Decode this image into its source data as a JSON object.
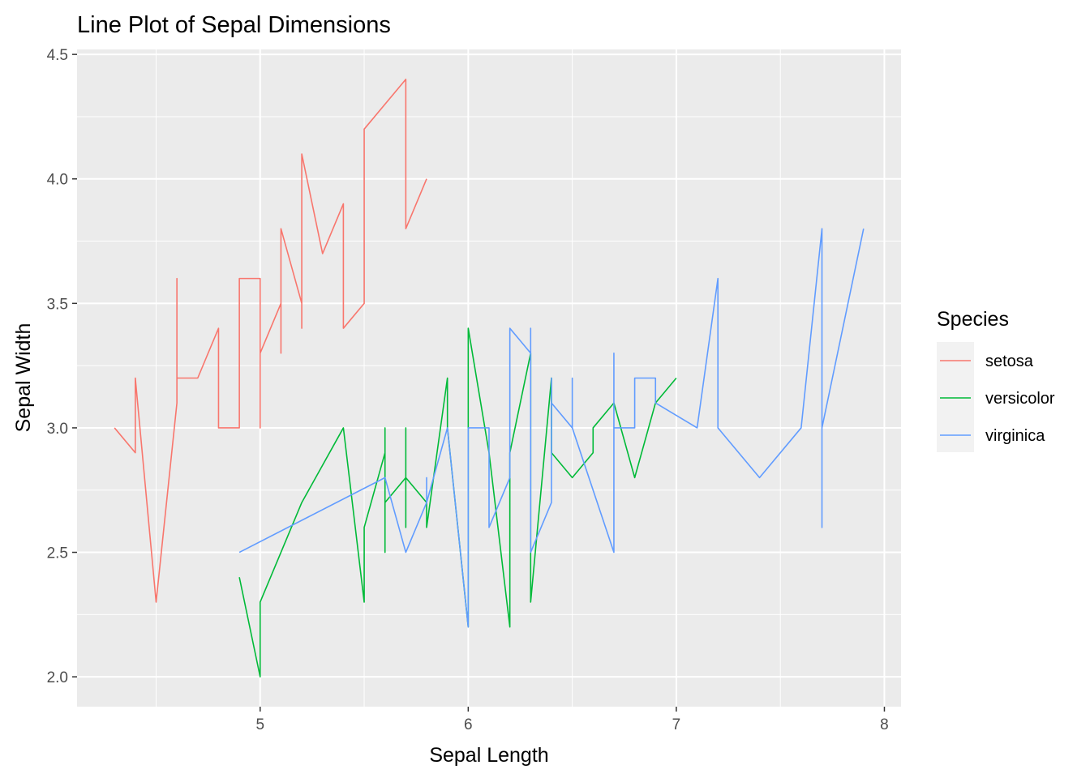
{
  "chart_data": {
    "type": "line",
    "title": "Line Plot of Sepal Dimensions",
    "xlabel": "Sepal Length",
    "ylabel": "Sepal Width",
    "xlim": [
      4.3,
      7.9
    ],
    "ylim": [
      2.0,
      4.4
    ],
    "x_ticks": [
      5,
      6,
      7,
      8
    ],
    "x_tick_labels": [
      "5",
      "6",
      "7",
      "8"
    ],
    "y_ticks": [
      2.0,
      2.5,
      3.0,
      3.5,
      4.0,
      4.5
    ],
    "y_tick_labels": [
      "2.0",
      "2.5",
      "3.0",
      "3.5",
      "4.0",
      "4.5"
    ],
    "grid": true,
    "legend": {
      "title": "Species",
      "position": "right"
    },
    "series": [
      {
        "name": "setosa",
        "color": "#F8766D",
        "points": [
          [
            4.3,
            3.0
          ],
          [
            4.4,
            2.9
          ],
          [
            4.4,
            3.2
          ],
          [
            4.5,
            2.3
          ],
          [
            4.6,
            3.1
          ],
          [
            4.6,
            3.6
          ],
          [
            4.6,
            3.2
          ],
          [
            4.7,
            3.2
          ],
          [
            4.8,
            3.4
          ],
          [
            4.8,
            3.0
          ],
          [
            4.9,
            3.0
          ],
          [
            4.9,
            3.6
          ],
          [
            5.0,
            3.6
          ],
          [
            5.0,
            3.0
          ],
          [
            5.0,
            3.3
          ],
          [
            5.1,
            3.5
          ],
          [
            5.1,
            3.3
          ],
          [
            5.1,
            3.8
          ],
          [
            5.2,
            3.5
          ],
          [
            5.2,
            3.4
          ],
          [
            5.2,
            4.1
          ],
          [
            5.3,
            3.7
          ],
          [
            5.4,
            3.9
          ],
          [
            5.4,
            3.4
          ],
          [
            5.5,
            3.5
          ],
          [
            5.5,
            4.2
          ],
          [
            5.7,
            4.4
          ],
          [
            5.7,
            3.8
          ],
          [
            5.8,
            4.0
          ]
        ]
      },
      {
        "name": "versicolor",
        "color": "#00BA38",
        "points": [
          [
            4.9,
            2.4
          ],
          [
            5.0,
            2.0
          ],
          [
            5.0,
            2.3
          ],
          [
            5.2,
            2.7
          ],
          [
            5.4,
            3.0
          ],
          [
            5.5,
            2.3
          ],
          [
            5.5,
            2.6
          ],
          [
            5.6,
            2.9
          ],
          [
            5.6,
            2.5
          ],
          [
            5.6,
            3.0
          ],
          [
            5.6,
            2.7
          ],
          [
            5.7,
            2.8
          ],
          [
            5.7,
            2.6
          ],
          [
            5.7,
            3.0
          ],
          [
            5.7,
            2.8
          ],
          [
            5.8,
            2.7
          ],
          [
            5.8,
            2.6
          ],
          [
            5.9,
            3.2
          ],
          [
            5.9,
            3.0
          ],
          [
            6.0,
            2.2
          ],
          [
            6.0,
            3.4
          ],
          [
            6.1,
            2.9
          ],
          [
            6.2,
            2.2
          ],
          [
            6.2,
            2.9
          ],
          [
            6.3,
            3.3
          ],
          [
            6.3,
            2.3
          ],
          [
            6.4,
            3.2
          ],
          [
            6.4,
            2.9
          ],
          [
            6.5,
            2.8
          ],
          [
            6.6,
            2.9
          ],
          [
            6.6,
            3.0
          ],
          [
            6.7,
            3.1
          ],
          [
            6.8,
            2.8
          ],
          [
            6.9,
            3.1
          ],
          [
            7.0,
            3.2
          ]
        ]
      },
      {
        "name": "virginica",
        "color": "#619CFF",
        "points": [
          [
            4.9,
            2.5
          ],
          [
            5.6,
            2.8
          ],
          [
            5.7,
            2.5
          ],
          [
            5.8,
            2.7
          ],
          [
            5.8,
            2.8
          ],
          [
            5.8,
            2.7
          ],
          [
            5.9,
            3.0
          ],
          [
            6.0,
            2.2
          ],
          [
            6.0,
            3.0
          ],
          [
            6.1,
            3.0
          ],
          [
            6.1,
            2.6
          ],
          [
            6.2,
            2.8
          ],
          [
            6.2,
            3.4
          ],
          [
            6.3,
            3.3
          ],
          [
            6.3,
            3.4
          ],
          [
            6.3,
            2.5
          ],
          [
            6.4,
            2.7
          ],
          [
            6.4,
            3.2
          ],
          [
            6.4,
            3.1
          ],
          [
            6.5,
            3.0
          ],
          [
            6.5,
            3.2
          ],
          [
            6.5,
            3.0
          ],
          [
            6.7,
            2.5
          ],
          [
            6.7,
            3.3
          ],
          [
            6.7,
            3.0
          ],
          [
            6.8,
            3.0
          ],
          [
            6.8,
            3.2
          ],
          [
            6.9,
            3.2
          ],
          [
            6.9,
            3.1
          ],
          [
            7.1,
            3.0
          ],
          [
            7.2,
            3.6
          ],
          [
            7.2,
            3.0
          ],
          [
            7.4,
            2.8
          ],
          [
            7.6,
            3.0
          ],
          [
            7.7,
            3.8
          ],
          [
            7.7,
            2.6
          ],
          [
            7.7,
            3.0
          ],
          [
            7.9,
            3.8
          ]
        ]
      }
    ]
  }
}
